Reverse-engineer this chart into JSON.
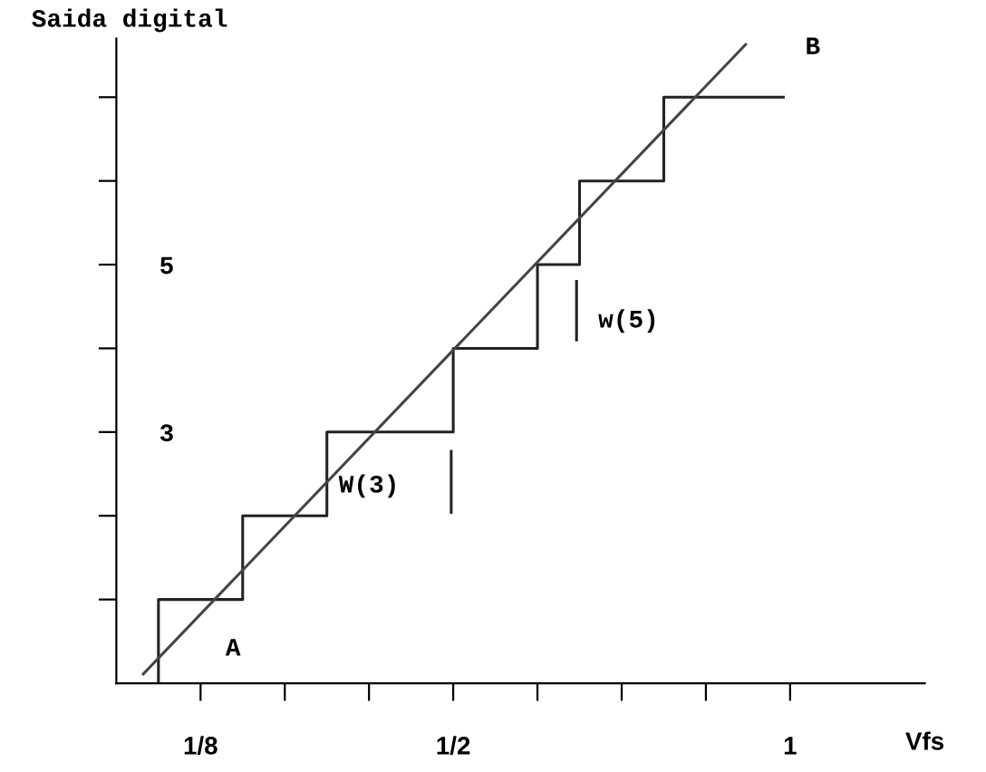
{
  "chart_data": {
    "type": "step",
    "ylabel": "Saida digital",
    "xlabel": "Vfs",
    "xlim": [
      0,
      1.2
    ],
    "ylim": [
      0,
      7.7
    ],
    "xticks": [
      {
        "value": 0.125,
        "label": "1/8"
      },
      {
        "value": 0.25,
        "label": null
      },
      {
        "value": 0.375,
        "label": null
      },
      {
        "value": 0.5,
        "label": "1/2"
      },
      {
        "value": 0.625,
        "label": null
      },
      {
        "value": 0.75,
        "label": null
      },
      {
        "value": 0.875,
        "label": null
      },
      {
        "value": 1,
        "label": "1"
      }
    ],
    "yticks": [
      {
        "value": 1,
        "label": null
      },
      {
        "value": 2,
        "label": null
      },
      {
        "value": 3,
        "label": "3"
      },
      {
        "value": 4,
        "label": null
      },
      {
        "value": 5,
        "label": "5"
      },
      {
        "value": 6,
        "label": null
      },
      {
        "value": 7,
        "label": null
      }
    ],
    "series": [
      {
        "color": "#222222",
        "x": [
          0.0625,
          0.0625,
          0.1875,
          0.3125,
          0.5,
          0.625,
          0.6875,
          0.8125,
          0.99
        ],
        "values": [
          0,
          1,
          2,
          3,
          4,
          5,
          6,
          7,
          7
        ]
      },
      {
        "type": "line",
        "color": "#444444",
        "x": [
          0.04,
          0.934
        ],
        "values": [
          0.11,
          7.63
        ]
      },
      {
        "type": "line",
        "color": "#222222",
        "x": [
          0.497,
          0.497
        ],
        "values": [
          2.04,
          2.77
        ]
      },
      {
        "type": "line",
        "color": "#222222",
        "x": [
          0.683,
          0.683
        ],
        "values": [
          4.1,
          4.8
        ]
      }
    ],
    "annotations": [
      "A",
      "B",
      "W(3)",
      "w(5)"
    ],
    "grid": false,
    "legend": false,
    "marker": "none",
    "line_style": "solid"
  }
}
